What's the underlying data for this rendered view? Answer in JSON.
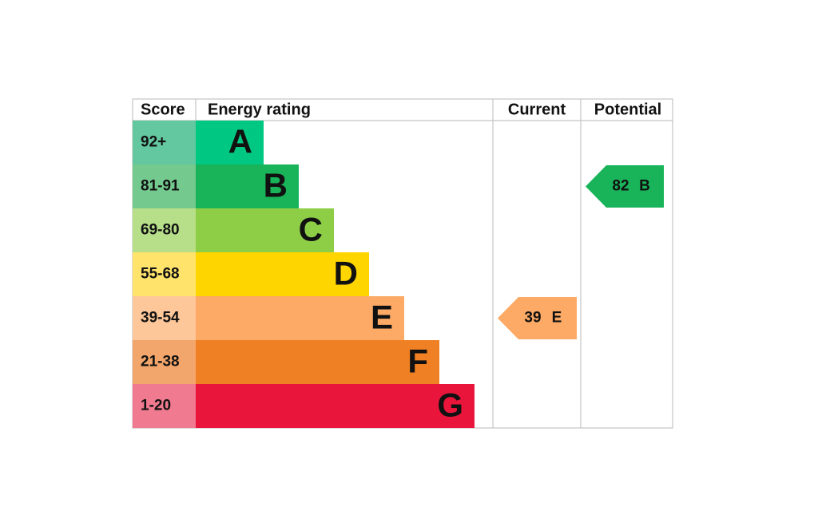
{
  "header": {
    "score": "Score",
    "energy_rating": "Energy rating",
    "current": "Current",
    "potential": "Potential"
  },
  "bands": [
    {
      "score": "92+",
      "letter": "A"
    },
    {
      "score": "81-91",
      "letter": "B"
    },
    {
      "score": "69-80",
      "letter": "C"
    },
    {
      "score": "55-68",
      "letter": "D"
    },
    {
      "score": "39-54",
      "letter": "E"
    },
    {
      "score": "21-38",
      "letter": "F"
    },
    {
      "score": "1-20",
      "letter": "G"
    }
  ],
  "current": {
    "value": "39",
    "letter": "E"
  },
  "potential": {
    "value": "82",
    "letter": "B"
  }
}
